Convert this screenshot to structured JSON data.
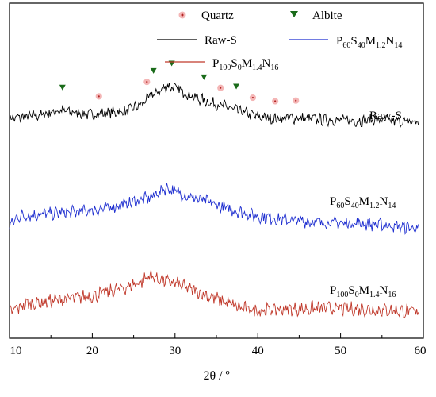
{
  "chart_data": {
    "type": "line",
    "xlabel": "2θ / º",
    "ylabel": "",
    "xlim": [
      10,
      60
    ],
    "x_ticks": [
      "10",
      "20",
      "30",
      "40",
      "50",
      "60"
    ],
    "grid": false,
    "legend": {
      "placement": "top",
      "entries": [
        {
          "name": "Quartz",
          "marker": "circle",
          "color": "#b22222"
        },
        {
          "name": "Albite",
          "marker": "triangle-down",
          "color": "#1a6b1a"
        },
        {
          "name": "Raw-S",
          "marker": "line",
          "color": "#000000"
        },
        {
          "name": "P60S40M1.2N14",
          "marker": "line",
          "color": "#1f2fd0"
        },
        {
          "name": "P100S0M1.4N16",
          "marker": "line",
          "color": "#c0392b"
        }
      ]
    },
    "series": [
      {
        "name": "Raw-S",
        "color": "#000000",
        "label_parts": [
          {
            "t": "Raw-S",
            "sub": ""
          }
        ],
        "baseline": 0.1,
        "noise": 0.045,
        "x": [
          10,
          12,
          14,
          16,
          18,
          20,
          22,
          24,
          26,
          27,
          28,
          29,
          30,
          31,
          32,
          34,
          36,
          38,
          40,
          42,
          44,
          46,
          48,
          50,
          52,
          54,
          56,
          58,
          59.5
        ],
        "values": [
          0.08,
          0.1,
          0.12,
          0.16,
          0.14,
          0.12,
          0.14,
          0.15,
          0.22,
          0.3,
          0.34,
          0.4,
          0.38,
          0.34,
          0.3,
          0.24,
          0.2,
          0.15,
          0.1,
          0.08,
          0.09,
          0.08,
          0.07,
          0.07,
          0.06,
          0.07,
          0.06,
          0.05,
          0.05
        ]
      },
      {
        "name": "P60S40M1.2N14",
        "color": "#1f2fd0",
        "label_parts": [
          {
            "t": "P",
            "sub": "60"
          },
          {
            "t": "S",
            "sub": "40"
          },
          {
            "t": "M",
            "sub": "1.2"
          },
          {
            "t": "N",
            "sub": "14"
          }
        ],
        "baseline": 0.1,
        "noise": 0.05,
        "x": [
          10,
          11,
          14,
          18,
          22,
          25,
          27,
          29,
          30,
          32,
          34,
          36,
          38,
          40,
          44,
          48,
          52,
          56,
          59.5
        ],
        "values": [
          0.02,
          0.12,
          0.14,
          0.16,
          0.2,
          0.26,
          0.3,
          0.4,
          0.36,
          0.3,
          0.26,
          0.2,
          0.16,
          0.12,
          0.08,
          0.06,
          0.05,
          0.03,
          0.0
        ]
      },
      {
        "name": "P100S0M1.4N16",
        "color": "#c0392b",
        "label_parts": [
          {
            "t": "P",
            "sub": "100"
          },
          {
            "t": "S",
            "sub": "0"
          },
          {
            "t": "M",
            "sub": "1.4"
          },
          {
            "t": "N",
            "sub": "16"
          }
        ],
        "baseline": 0.08,
        "noise": 0.055,
        "x": [
          10,
          12,
          16,
          20,
          24,
          26,
          27,
          28,
          30,
          32,
          34,
          36,
          38,
          40,
          44,
          48,
          52,
          56,
          59.5
        ],
        "values": [
          0.02,
          0.1,
          0.14,
          0.18,
          0.26,
          0.32,
          0.38,
          0.34,
          0.3,
          0.24,
          0.18,
          0.12,
          0.06,
          0.04,
          0.05,
          0.06,
          0.05,
          0.04,
          0.02
        ]
      }
    ],
    "markers": {
      "quartz_x": [
        20.8,
        26.6,
        35.5,
        39.4,
        42.1,
        44.6
      ],
      "albite_x": [
        16.4,
        27.4,
        29.6,
        33.5,
        37.4
      ]
    }
  }
}
